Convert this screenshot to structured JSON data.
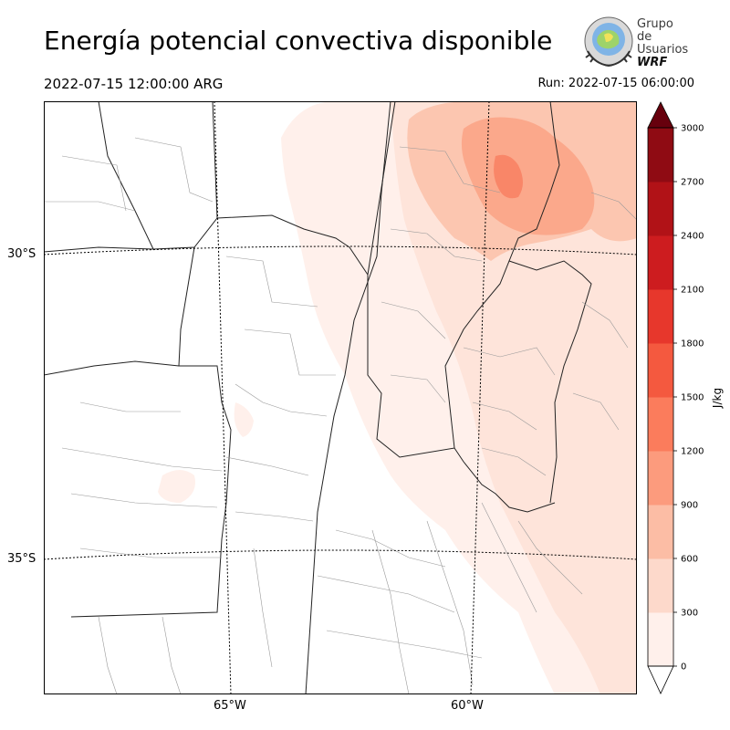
{
  "title": "Energía potencial convectiva disponible",
  "valid_time": "2022-07-15 12:00:00 ARG",
  "run_time": "Run: 2022-07-15 06:00:00",
  "logo": {
    "line1": "Grupo de",
    "line2": "Usuarios",
    "line3": "WRF"
  },
  "axes": {
    "lat_labels": [
      "30°S",
      "35°S"
    ],
    "lon_labels": [
      "65°W",
      "60°W"
    ]
  },
  "colorbar": {
    "unit": "J/kg",
    "ticks": [
      "0",
      "300",
      "600",
      "900",
      "1200",
      "1500",
      "1800",
      "2100",
      "2400",
      "2700",
      "3000"
    ],
    "colors": [
      "#fff0eb",
      "#fdd9cb",
      "#fcbda5",
      "#fc9b7d",
      "#fb7c5c",
      "#f4593f",
      "#e7372c",
      "#cd1c1f",
      "#b11217",
      "#8f0b13",
      "#6d010e"
    ],
    "extend_color": "#67000d"
  },
  "map_colors": {
    "lowest": "#fff0eb",
    "low": "#fee4da",
    "mid": "#fcc6b0",
    "high": "#fba88b",
    "peak": "#f98668"
  }
}
